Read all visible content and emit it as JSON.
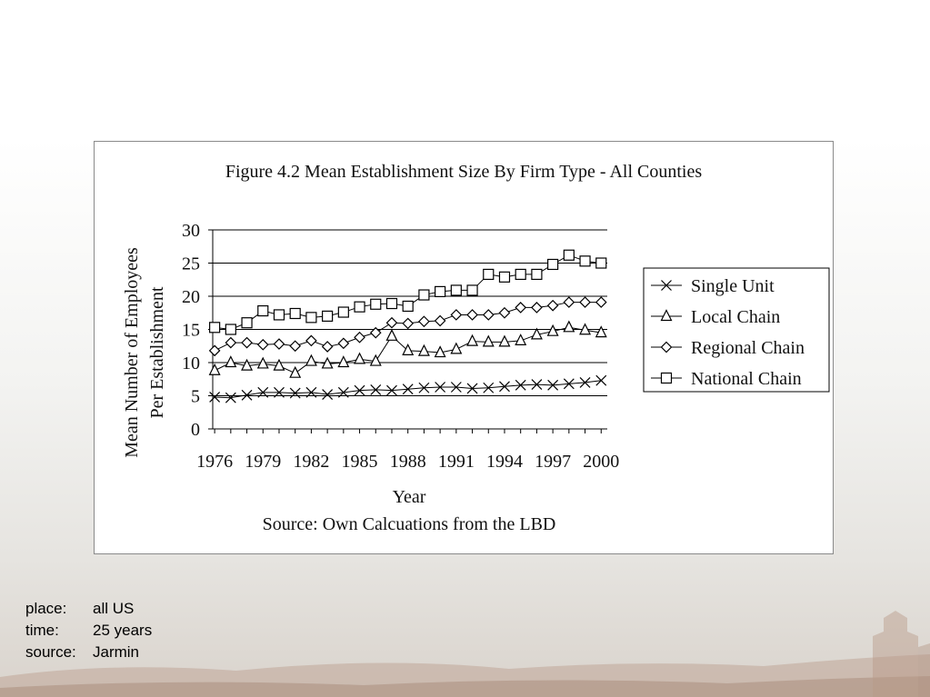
{
  "chart_data": {
    "type": "line",
    "title": "Figure 4.2 Mean Establishment Size By Firm Type - All Counties",
    "xlabel": "Year",
    "ylabel": "Mean Number of Employees",
    "ylabel2": "Per Establishment",
    "source_note": "Source: Own Calcuations from the LBD",
    "x": [
      1976,
      1977,
      1978,
      1979,
      1980,
      1981,
      1982,
      1983,
      1984,
      1985,
      1986,
      1987,
      1988,
      1989,
      1990,
      1991,
      1992,
      1993,
      1994,
      1995,
      1996,
      1997,
      1998,
      1999,
      2000
    ],
    "xticks": [
      "1976",
      "1979",
      "1982",
      "1985",
      "1988",
      "1991",
      "1994",
      "1997",
      "2000"
    ],
    "yticks": [
      "0",
      "5",
      "10",
      "15",
      "20",
      "25",
      "30"
    ],
    "ylim": [
      0,
      30
    ],
    "grid": "horizontal",
    "legend_position": "right",
    "series": [
      {
        "name": "Single Unit",
        "marker": "x",
        "values": [
          4.8,
          4.7,
          5.1,
          5.5,
          5.5,
          5.4,
          5.5,
          5.2,
          5.5,
          5.8,
          5.9,
          5.8,
          6.0,
          6.2,
          6.3,
          6.3,
          6.1,
          6.2,
          6.4,
          6.6,
          6.7,
          6.6,
          6.8,
          7.0,
          7.3
        ]
      },
      {
        "name": "Local Chain",
        "marker": "triangle",
        "values": [
          8.8,
          10.0,
          9.5,
          9.8,
          9.5,
          8.4,
          10.2,
          9.8,
          10.0,
          10.5,
          10.2,
          14.0,
          11.8,
          11.7,
          11.5,
          12.0,
          13.2,
          13.1,
          13.1,
          13.3,
          14.2,
          14.7,
          15.3,
          14.9,
          14.5
        ]
      },
      {
        "name": "Regional Chain",
        "marker": "diamond",
        "values": [
          11.8,
          13.0,
          13.0,
          12.7,
          12.8,
          12.5,
          13.3,
          12.4,
          12.9,
          13.8,
          14.5,
          16.0,
          15.9,
          16.2,
          16.3,
          17.2,
          17.2,
          17.2,
          17.5,
          18.3,
          18.3,
          18.6,
          19.1,
          19.1,
          19.1
        ]
      },
      {
        "name": "National Chain",
        "marker": "square",
        "values": [
          15.3,
          15.0,
          16.0,
          17.8,
          17.2,
          17.4,
          16.8,
          17.0,
          17.6,
          18.4,
          18.8,
          18.9,
          18.5,
          20.2,
          20.7,
          20.9,
          20.9,
          23.3,
          22.9,
          23.3,
          23.3,
          24.8,
          26.2,
          25.3,
          25.0
        ]
      }
    ]
  },
  "info": {
    "place_label": "place:",
    "place_value": "all US",
    "time_label": "time:",
    "time_value": "25 years",
    "source_label": "source:",
    "source_value": "Jarmin"
  }
}
